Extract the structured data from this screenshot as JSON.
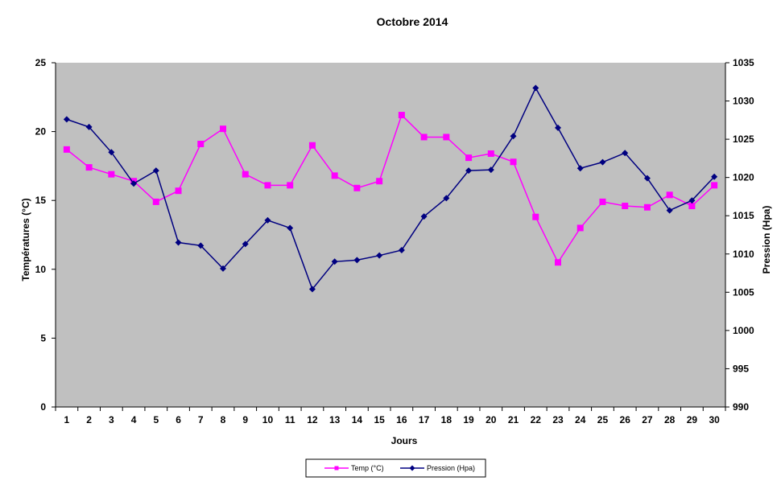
{
  "chart_data": {
    "type": "line",
    "title": "Octobre 2014",
    "xlabel": "Jours",
    "ylabel_left": "Températures  (°C)",
    "ylabel_right": "Pression (Hpa)",
    "x": [
      1,
      2,
      3,
      4,
      5,
      6,
      7,
      8,
      9,
      10,
      11,
      12,
      13,
      14,
      15,
      16,
      17,
      18,
      19,
      20,
      21,
      22,
      23,
      24,
      25,
      26,
      27,
      28,
      29,
      30
    ],
    "ylim_left": [
      0,
      25
    ],
    "yticks_left": [
      0,
      5,
      10,
      15,
      20,
      25
    ],
    "ylim_right": [
      990,
      1035
    ],
    "yticks_right": [
      990,
      995,
      1000,
      1005,
      1010,
      1015,
      1020,
      1025,
      1030,
      1035
    ],
    "plot_background": "#c0c0c0",
    "legend_position": "bottom-center",
    "series": [
      {
        "name": "Temp (°C)",
        "axis": "left",
        "color": "#ff00ff",
        "marker": "square",
        "values": [
          18.7,
          17.4,
          16.9,
          16.4,
          14.9,
          15.7,
          19.1,
          20.2,
          16.9,
          16.1,
          16.1,
          19.0,
          16.8,
          15.9,
          16.4,
          21.2,
          19.6,
          19.6,
          18.1,
          18.4,
          17.8,
          13.8,
          10.5,
          13.0,
          14.9,
          14.6,
          14.5,
          15.4,
          14.6,
          16.1
        ]
      },
      {
        "name": "Pression (Hpa)",
        "axis": "right",
        "color": "#000080",
        "marker": "diamond",
        "values": [
          1027.6,
          1026.6,
          1023.3,
          1019.2,
          1020.9,
          1011.5,
          1011.1,
          1008.1,
          1011.3,
          1014.4,
          1013.4,
          1005.4,
          1009.0,
          1009.2,
          1009.8,
          1010.5,
          1014.9,
          1017.3,
          1020.9,
          1021.0,
          1025.4,
          1031.7,
          1026.5,
          1021.2,
          1022.0,
          1023.2,
          1019.9,
          1015.7,
          1017.0,
          1020.1
        ]
      }
    ]
  }
}
